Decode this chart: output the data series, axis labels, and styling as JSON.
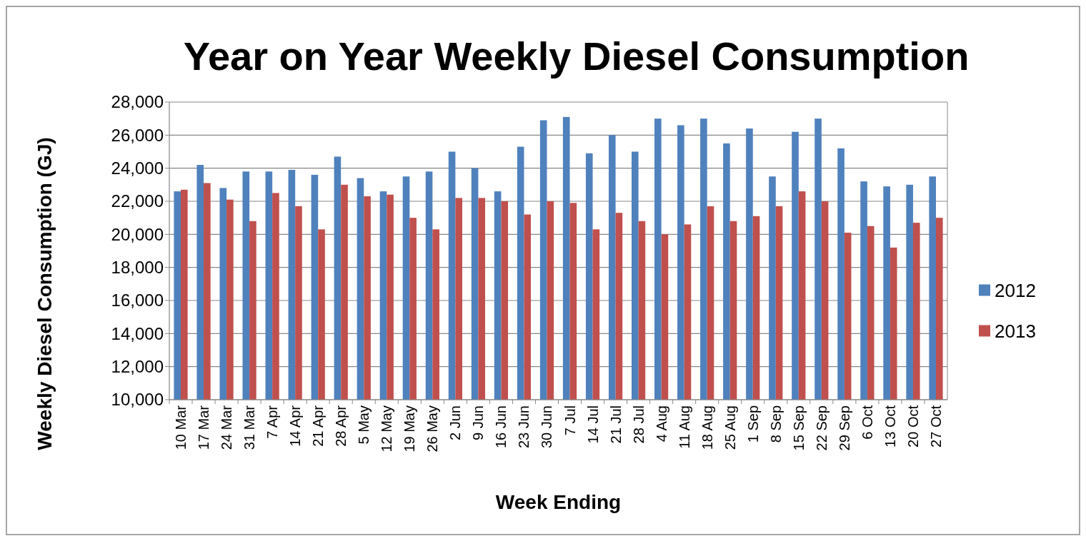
{
  "chart_data": {
    "type": "bar",
    "title": "Year on Year Weekly Diesel Consumption",
    "xlabel": "Week Ending",
    "ylabel": "Weekly Diesel Consumption (GJ)",
    "categories": [
      "10 Mar",
      "17 Mar",
      "24 Mar",
      "31 Mar",
      "7 Apr",
      "14 Apr",
      "21 Apr",
      "28 Apr",
      "5 May",
      "12 May",
      "19 May",
      "26 May",
      "2 Jun",
      "9 Jun",
      "16 Jun",
      "23 Jun",
      "30 Jun",
      "7 Jul",
      "14 Jul",
      "21 Jul",
      "28 Jul",
      "4 Aug",
      "11 Aug",
      "18 Aug",
      "25 Aug",
      "1 Sep",
      "8 Sep",
      "15 Sep",
      "22 Sep",
      "29 Sep",
      "6 Oct",
      "13 Oct",
      "20 Oct",
      "27 Oct"
    ],
    "series": [
      {
        "name": "2012",
        "color": "#4f81bd",
        "values": [
          22600,
          24200,
          22800,
          23800,
          23800,
          23900,
          23600,
          24700,
          23400,
          22600,
          23500,
          23800,
          25000,
          24000,
          22600,
          25300,
          26900,
          27100,
          24900,
          26000,
          25000,
          27000,
          26600,
          27000,
          25500,
          26400,
          23500,
          26200,
          27000,
          25200,
          23200,
          22900,
          23000,
          23500
        ]
      },
      {
        "name": "2013",
        "color": "#c0504d",
        "values": [
          22700,
          23100,
          22100,
          20800,
          22500,
          21700,
          20300,
          23000,
          22300,
          22400,
          21000,
          20300,
          22200,
          22200,
          22000,
          21200,
          22000,
          21900,
          20300,
          21300,
          20800,
          20000,
          20600,
          21700,
          20800,
          21100,
          21700,
          22600,
          22000,
          20100,
          20500,
          19200,
          20700,
          21000
        ]
      }
    ],
    "ylim": [
      10000,
      28000
    ],
    "yticks": [
      {
        "value": 10000,
        "label": "10,000"
      },
      {
        "value": 12000,
        "label": "12,000"
      },
      {
        "value": 14000,
        "label": "14,000"
      },
      {
        "value": 16000,
        "label": "16,000"
      },
      {
        "value": 18000,
        "label": "18,000"
      },
      {
        "value": 20000,
        "label": "20,000"
      },
      {
        "value": 22000,
        "label": "22,000"
      },
      {
        "value": 24000,
        "label": "24,000"
      },
      {
        "value": 26000,
        "label": "26,000"
      },
      {
        "value": 28000,
        "label": "28,000"
      }
    ],
    "grid": "y",
    "legend": "right"
  }
}
